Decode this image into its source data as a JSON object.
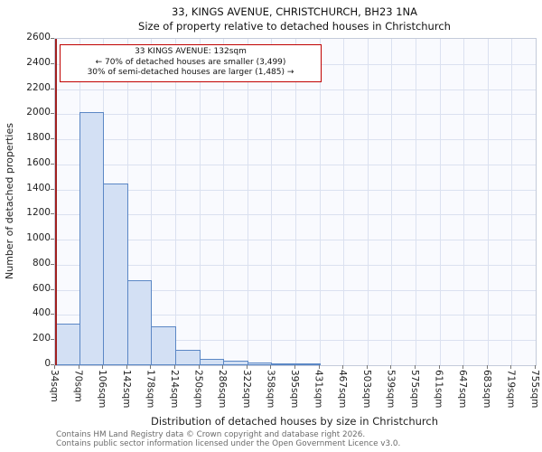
{
  "annotation": {
    "line1": "33 KINGS AVENUE: 132sqm",
    "line2": "← 70% of detached houses are smaller (3,499)",
    "line3": "30% of semi-detached houses are larger (1,485) →"
  },
  "footer": {
    "line1": "Contains HM Land Registry data © Crown copyright and database right 2026.",
    "line2": "Contains public sector information licensed under the Open Government Licence v3.0."
  },
  "chart_data": {
    "type": "bar",
    "title": "33, KINGS AVENUE, CHRISTCHURCH, BH23 1NA",
    "subtitle": "Size of property relative to detached houses in Christchurch",
    "xlabel": "Distribution of detached houses by size in Christchurch",
    "ylabel": "Number of detached properties",
    "categories": [
      "34sqm",
      "70sqm",
      "106sqm",
      "142sqm",
      "178sqm",
      "214sqm",
      "250sqm",
      "286sqm",
      "322sqm",
      "358sqm",
      "395sqm",
      "431sqm",
      "467sqm",
      "503sqm",
      "539sqm",
      "575sqm",
      "611sqm",
      "647sqm",
      "683sqm",
      "719sqm",
      "755sqm"
    ],
    "values": [
      330,
      2020,
      1450,
      680,
      310,
      120,
      50,
      35,
      20,
      10,
      5,
      0,
      0,
      0,
      0,
      0,
      0,
      0,
      0,
      0
    ],
    "ylim": [
      0,
      2600
    ],
    "ytick_step": 200,
    "grid": true,
    "legend": "none",
    "marker": {
      "label": "33 KINGS AVENUE",
      "value_sqm": 132,
      "x_start": 34,
      "x_end": 755,
      "color": "#a02020"
    },
    "bar_fill": "#d3e0f4",
    "bar_edge": "#5b87c5"
  }
}
